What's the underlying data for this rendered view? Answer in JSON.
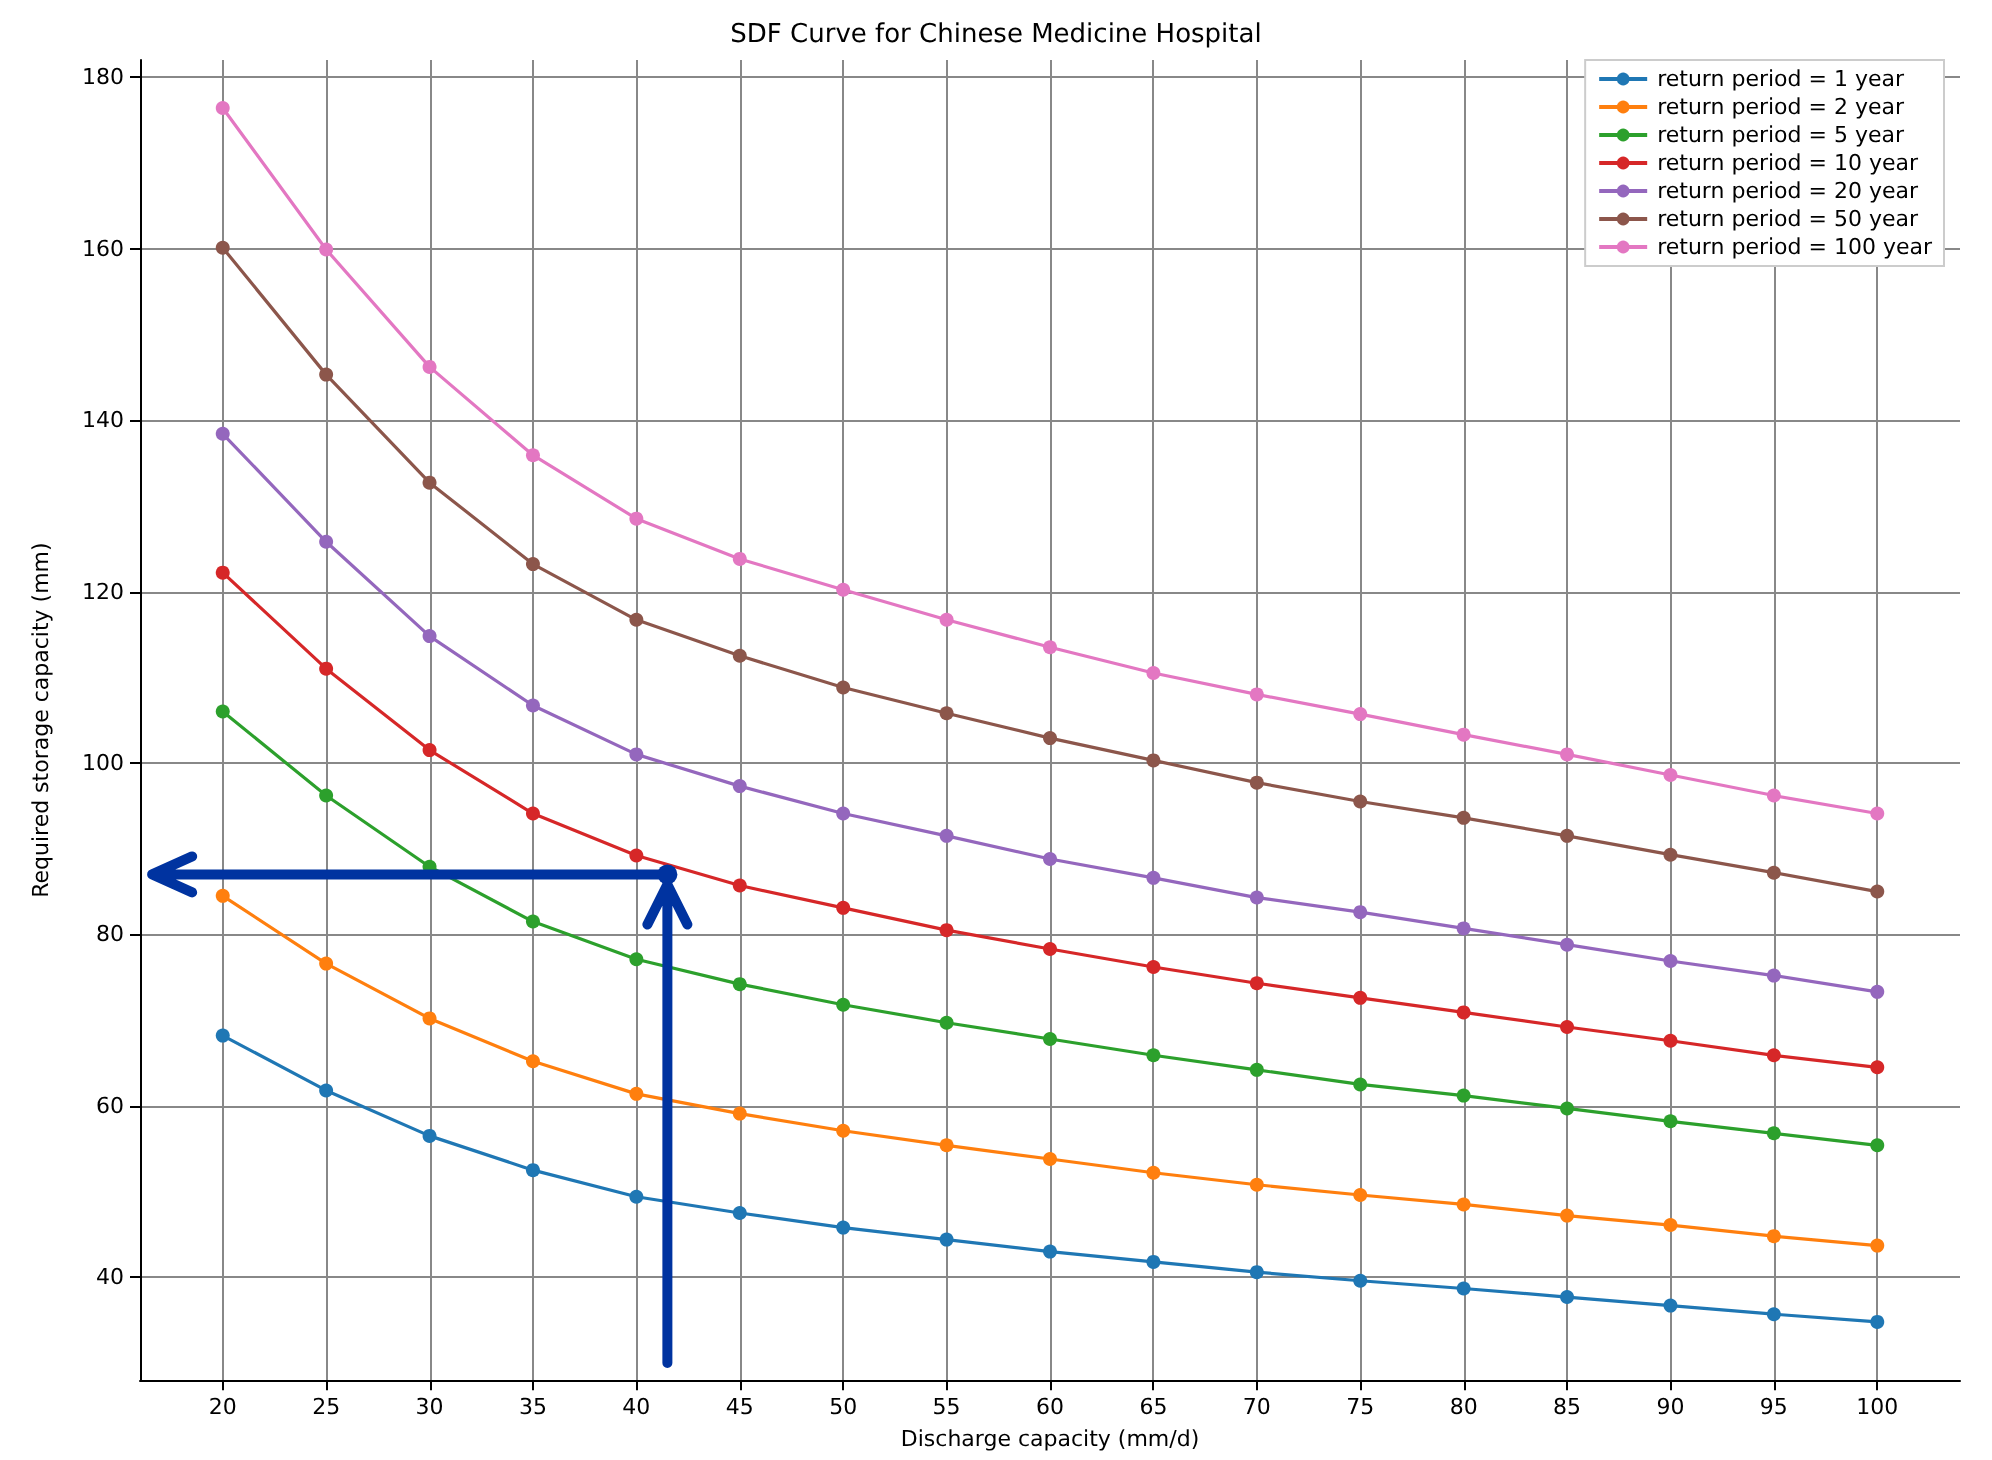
{
  "chart_data": {
    "type": "line",
    "title": "SDF Curve for Chinese Medicine Hospital",
    "xlabel": "Discharge capacity (mm/d)",
    "ylabel": "Required storage capacity (mm)",
    "x": [
      20,
      25,
      30,
      35,
      40,
      45,
      50,
      55,
      60,
      65,
      70,
      75,
      80,
      85,
      90,
      95,
      100
    ],
    "xlim": [
      16,
      104
    ],
    "xticks": [
      20,
      25,
      30,
      35,
      40,
      45,
      50,
      55,
      60,
      65,
      70,
      75,
      80,
      85,
      90,
      95,
      100
    ],
    "ylim": [
      28,
      182
    ],
    "yticks": [
      40,
      60,
      80,
      100,
      120,
      140,
      160,
      180
    ],
    "grid": true,
    "legend": "top right",
    "marker": "circle",
    "line_style": "solid",
    "series": [
      {
        "name": "return period = 1 year",
        "color": "#1f77b4",
        "values": [
          68.2,
          61.8,
          56.5,
          52.5,
          49.4,
          47.5,
          45.8,
          44.4,
          43.0,
          41.8,
          40.6,
          39.6,
          38.7,
          37.7,
          36.7,
          35.7,
          34.8
        ]
      },
      {
        "name": "return period = 2 year",
        "color": "#ff7f0e",
        "values": [
          84.5,
          76.6,
          70.2,
          65.2,
          61.4,
          59.1,
          57.1,
          55.4,
          53.8,
          52.2,
          50.8,
          49.6,
          48.5,
          47.2,
          46.1,
          44.8,
          43.7
        ]
      },
      {
        "name": "return period = 5 year",
        "color": "#2ca02c",
        "values": [
          106.0,
          96.2,
          87.9,
          81.5,
          77.1,
          74.2,
          71.8,
          69.7,
          67.8,
          65.9,
          64.2,
          62.5,
          61.2,
          59.7,
          58.2,
          56.8,
          55.4
        ]
      },
      {
        "name": "return period = 10 year",
        "color": "#d62728",
        "values": [
          122.2,
          111.0,
          101.5,
          94.1,
          89.2,
          85.7,
          83.1,
          80.5,
          78.3,
          76.2,
          74.3,
          72.6,
          70.9,
          69.2,
          67.6,
          65.9,
          64.5
        ]
      },
      {
        "name": "return period = 20 year",
        "color": "#9467bd",
        "values": [
          138.4,
          125.8,
          114.8,
          106.7,
          101.0,
          97.3,
          94.1,
          91.5,
          88.8,
          86.6,
          84.3,
          82.6,
          80.7,
          78.8,
          76.9,
          75.2,
          73.3
        ]
      },
      {
        "name": "return period = 50 year",
        "color": "#8c564b",
        "values": [
          160.1,
          145.3,
          132.7,
          123.2,
          116.7,
          112.5,
          108.8,
          105.8,
          102.9,
          100.3,
          97.7,
          95.5,
          93.6,
          91.5,
          89.3,
          87.2,
          85.0
        ]
      },
      {
        "name": "return period = 100 year",
        "color": "#e377c2",
        "values": [
          176.4,
          159.9,
          146.2,
          135.9,
          128.5,
          123.8,
          120.2,
          116.7,
          113.5,
          110.5,
          108.0,
          105.7,
          103.3,
          101.0,
          98.6,
          96.2,
          94.1
        ]
      }
    ]
  }
}
